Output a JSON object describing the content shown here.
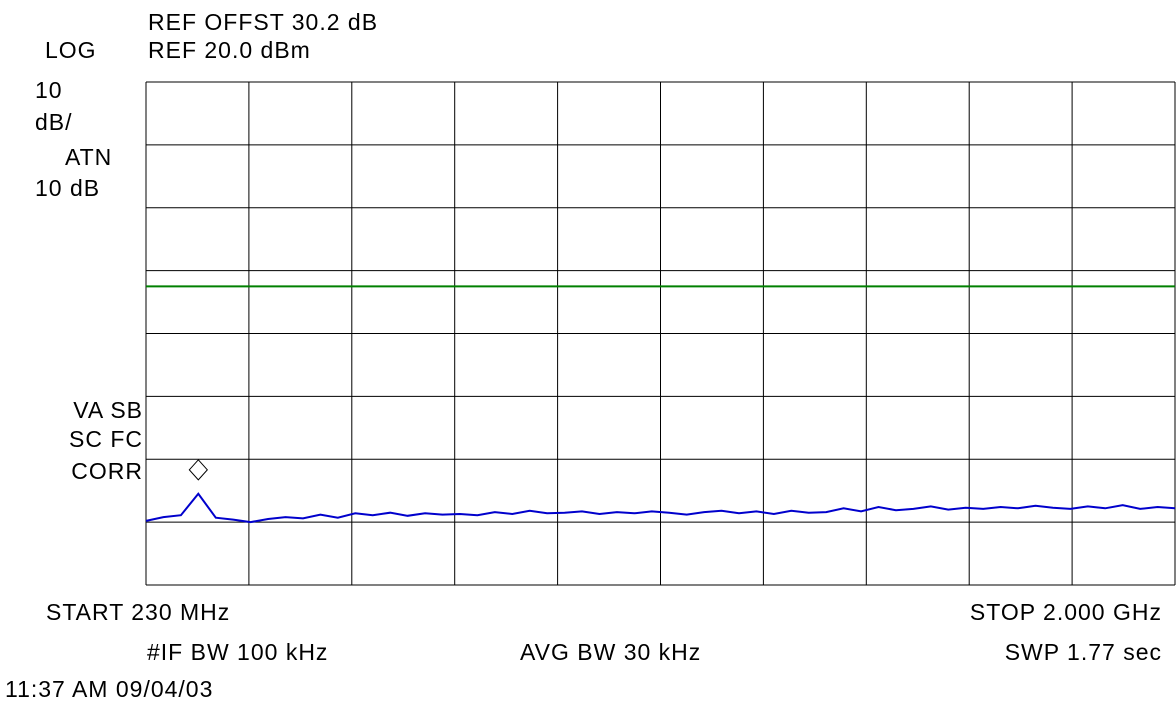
{
  "chart_data": {
    "type": "line",
    "texts": [
      "REF OFFST 30.2 dB",
      "LOG",
      "REF 20.0 dBm",
      "10",
      "dB/",
      "ATN",
      "10 dB",
      "VA SB",
      "SC FC",
      "CORR",
      "START 230 MHz",
      "STOP 2.000 GHz",
      "#IF BW 100 kHz",
      "AVG BW 30 kHz",
      "SWP 1.77 sec",
      "11:37 AM 09/04/03"
    ],
    "x": [
      230,
      260,
      290,
      320,
      350,
      380,
      410,
      440,
      470,
      500,
      530,
      560,
      590,
      620,
      650,
      680,
      710,
      740,
      770,
      800,
      830,
      860,
      890,
      920,
      950,
      980,
      1010,
      1040,
      1070,
      1100,
      1130,
      1160,
      1190,
      1220,
      1250,
      1280,
      1310,
      1340,
      1370,
      1400,
      1430,
      1460,
      1490,
      1520,
      1550,
      1580,
      1610,
      1640,
      1670,
      1700,
      1730,
      1760,
      1790,
      1820,
      1850,
      1880,
      1910,
      1940,
      1970,
      2000
    ],
    "series": [
      {
        "color": "#0000cc",
        "values": [
          -49.8,
          -49.2,
          -48.9,
          -45.5,
          -49.3,
          -49.6,
          -50.0,
          -49.5,
          -49.2,
          -49.4,
          -48.8,
          -49.3,
          -48.6,
          -48.9,
          -48.5,
          -49.0,
          -48.6,
          -48.8,
          -48.7,
          -48.9,
          -48.4,
          -48.7,
          -48.2,
          -48.6,
          -48.5,
          -48.3,
          -48.7,
          -48.4,
          -48.6,
          -48.3,
          -48.5,
          -48.8,
          -48.4,
          -48.2,
          -48.6,
          -48.3,
          -48.7,
          -48.2,
          -48.5,
          -48.4,
          -47.8,
          -48.3,
          -47.6,
          -48.1,
          -47.9,
          -47.5,
          -48.0,
          -47.7,
          -47.9,
          -47.6,
          -47.8,
          -47.4,
          -47.7,
          -47.9,
          -47.5,
          -47.8,
          -47.3,
          -47.9,
          -47.6,
          -47.8
        ]
      }
    ],
    "marker_x": 320,
    "display_line": {
      "value": -12.5,
      "color": "#008000"
    },
    "xlim": [
      230,
      2000
    ],
    "xticks": [
      230,
      407,
      584,
      761,
      938,
      1115,
      1292,
      1469,
      1646,
      1823,
      2000
    ],
    "ylim": [
      -60,
      20
    ],
    "yticks": [
      -60,
      -50,
      -40,
      -30,
      -20,
      -10,
      0,
      10,
      20
    ],
    "grid": true
  }
}
